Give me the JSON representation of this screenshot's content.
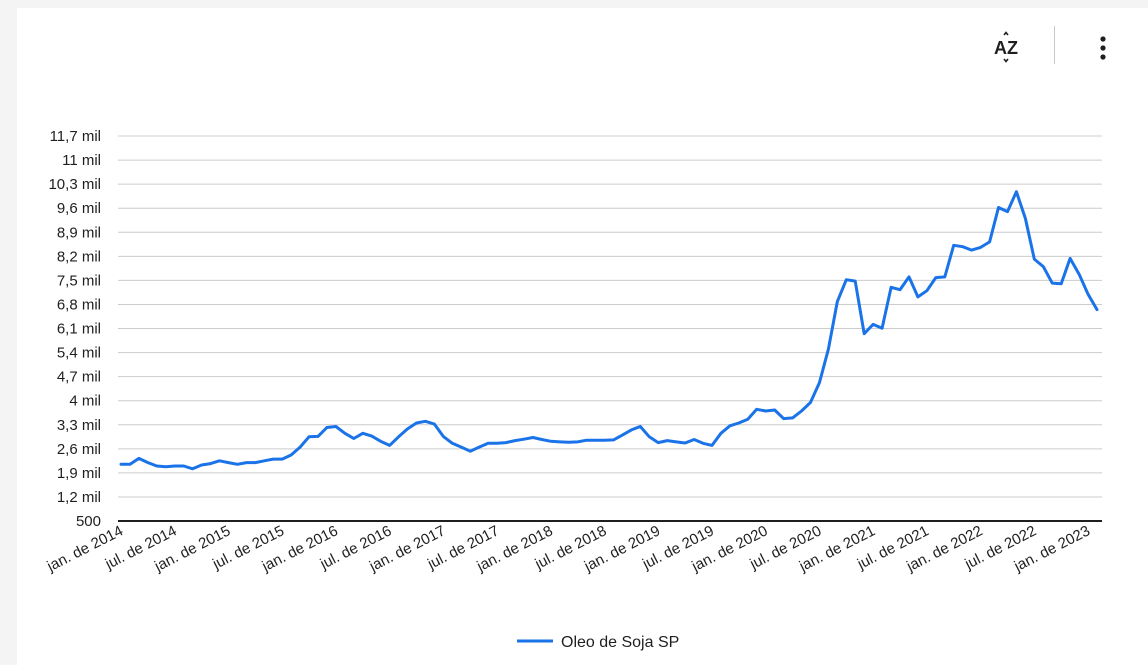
{
  "toolbar": {
    "sort_icon_text": "AZ",
    "sort_icon": "sort-az-icon",
    "more_icon": "more-vert-icon"
  },
  "chart_data": {
    "type": "line",
    "title": "",
    "xlabel": "",
    "ylabel": "",
    "y_ticks": [
      500,
      1200,
      1900,
      2600,
      3300,
      4000,
      4700,
      5400,
      6100,
      6800,
      7500,
      8200,
      8900,
      9600,
      10300,
      11000,
      11700
    ],
    "y_tick_labels": [
      "500",
      "1,2 mil",
      "1,9 mil",
      "2,6 mil",
      "3,3 mil",
      "4 mil",
      "4,7 mil",
      "5,4 mil",
      "6,1 mil",
      "6,8 mil",
      "7,5 mil",
      "8,2 mil",
      "8,9 mil",
      "9,6 mil",
      "10,3 mil",
      "11 mil",
      "11,7 mil"
    ],
    "ylim": [
      500,
      11700
    ],
    "x_tick_labels": [
      "jan. de 2014",
      "jul. de 2014",
      "jan. de 2015",
      "jul. de 2015",
      "jan. de 2016",
      "jul. de 2016",
      "jan. de 2017",
      "jul. de 2017",
      "jan. de 2018",
      "jul. de 2018",
      "jan. de 2019",
      "jul. de 2019",
      "jan. de 2020",
      "jul. de 2020",
      "jan. de 2021",
      "jul. de 2021",
      "jan. de 2022",
      "jul. de 2022",
      "jan. de 2023"
    ],
    "x_start": "jan. de 2014",
    "grid": true,
    "legend_position": "bottom",
    "color": "#1a73e8",
    "series": [
      {
        "name": "Oleo de Soja SP",
        "values": [
          2150,
          2150,
          2320,
          2200,
          2100,
          2080,
          2100,
          2100,
          2020,
          2130,
          2170,
          2250,
          2200,
          2150,
          2200,
          2200,
          2250,
          2300,
          2300,
          2420,
          2650,
          2950,
          2960,
          3220,
          3250,
          3050,
          2900,
          3050,
          2970,
          2820,
          2700,
          2950,
          3180,
          3350,
          3400,
          3320,
          2960,
          2760,
          2650,
          2530,
          2650,
          2760,
          2760,
          2780,
          2840,
          2880,
          2930,
          2870,
          2820,
          2800,
          2790,
          2800,
          2850,
          2850,
          2850,
          2860,
          3000,
          3150,
          3250,
          2950,
          2780,
          2840,
          2800,
          2770,
          2870,
          2760,
          2700,
          3050,
          3270,
          3350,
          3460,
          3750,
          3700,
          3730,
          3480,
          3500,
          3700,
          3950,
          4520,
          5500,
          6880,
          7520,
          7480,
          5950,
          6220,
          6110,
          7300,
          7230,
          7600,
          7020,
          7200,
          7580,
          7600,
          8520,
          8480,
          8380,
          8460,
          8620,
          9620,
          9500,
          10080,
          9300,
          8120,
          7900,
          7420,
          7400,
          8140,
          7680,
          7100,
          6650
        ]
      }
    ]
  }
}
